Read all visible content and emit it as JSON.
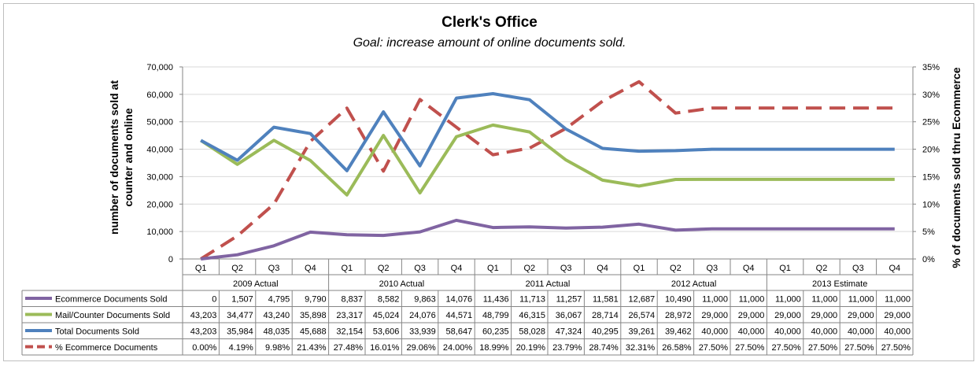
{
  "chart_data": {
    "type": "line",
    "title": "Clerk's Office",
    "subtitle": "Goal: increase amount of online documents sold.",
    "ylabel": "number of documents sold at counter and online",
    "y2label": "% of documents sold thru Ecommerce",
    "ylim": [
      0,
      70000
    ],
    "y_ticks": [
      "0",
      "10,000",
      "20,000",
      "30,000",
      "40,000",
      "50,000",
      "60,000",
      "70,000"
    ],
    "y2lim": [
      0,
      35
    ],
    "y2_ticks": [
      "0%",
      "5%",
      "10%",
      "15%",
      "20%",
      "25%",
      "30%",
      "35%"
    ],
    "quarters": [
      "Q1",
      "Q2",
      "Q3",
      "Q4",
      "Q1",
      "Q2",
      "Q3",
      "Q4",
      "Q1",
      "Q2",
      "Q3",
      "Q4",
      "Q1",
      "Q2",
      "Q3",
      "Q4",
      "Q1",
      "Q2",
      "Q3",
      "Q4"
    ],
    "groups": [
      "2009 Actual",
      "2010 Actual",
      "2011 Actual",
      "2012 Actual",
      "2013 Estimate"
    ],
    "series": [
      {
        "name": "Ecommerce Documents Sold",
        "axis": "left",
        "color": "#8064a2",
        "dashed": false,
        "values": [
          0,
          1507,
          4795,
          9790,
          8837,
          8582,
          9863,
          14076,
          11436,
          11713,
          11257,
          11581,
          12687,
          10490,
          11000,
          11000,
          11000,
          11000,
          11000,
          11000
        ],
        "labels": [
          "0",
          "1,507",
          "4,795",
          "9,790",
          "8,837",
          "8,582",
          "9,863",
          "14,076",
          "11,436",
          "11,713",
          "11,257",
          "11,581",
          "12,687",
          "10,490",
          "11,000",
          "11,000",
          "11,000",
          "11,000",
          "11,000",
          "11,000"
        ]
      },
      {
        "name": "Mail/Counter Documents Sold",
        "axis": "left",
        "color": "#9bbb59",
        "dashed": false,
        "values": [
          43203,
          34477,
          43240,
          35898,
          23317,
          45024,
          24076,
          44571,
          48799,
          46315,
          36067,
          28714,
          26574,
          28972,
          29000,
          29000,
          29000,
          29000,
          29000,
          29000
        ],
        "labels": [
          "43,203",
          "34,477",
          "43,240",
          "35,898",
          "23,317",
          "45,024",
          "24,076",
          "44,571",
          "48,799",
          "46,315",
          "36,067",
          "28,714",
          "26,574",
          "28,972",
          "29,000",
          "29,000",
          "29,000",
          "29,000",
          "29,000",
          "29,000"
        ]
      },
      {
        "name": "Total Documents Sold",
        "axis": "left",
        "color": "#4f81bd",
        "dashed": false,
        "values": [
          43203,
          35984,
          48035,
          45688,
          32154,
          53606,
          33939,
          58647,
          60235,
          58028,
          47324,
          40295,
          39261,
          39462,
          40000,
          40000,
          40000,
          40000,
          40000,
          40000
        ],
        "labels": [
          "43,203",
          "35,984",
          "48,035",
          "45,688",
          "32,154",
          "53,606",
          "33,939",
          "58,647",
          "60,235",
          "58,028",
          "47,324",
          "40,295",
          "39,261",
          "39,462",
          "40,000",
          "40,000",
          "40,000",
          "40,000",
          "40,000",
          "40,000"
        ]
      },
      {
        "name": "% Ecommerce Documents",
        "axis": "right",
        "color": "#c0504d",
        "dashed": true,
        "values": [
          0.0,
          4.19,
          9.98,
          21.43,
          27.48,
          16.01,
          29.06,
          24.0,
          18.99,
          20.19,
          23.79,
          28.74,
          32.31,
          26.58,
          27.5,
          27.5,
          27.5,
          27.5,
          27.5,
          27.5
        ],
        "labels": [
          "0.00%",
          "4.19%",
          "9.98%",
          "21.43%",
          "27.48%",
          "16.01%",
          "29.06%",
          "24.00%",
          "18.99%",
          "20.19%",
          "23.79%",
          "28.74%",
          "32.31%",
          "26.58%",
          "27.50%",
          "27.50%",
          "27.50%",
          "27.50%",
          "27.50%",
          "27.50%"
        ]
      }
    ]
  }
}
